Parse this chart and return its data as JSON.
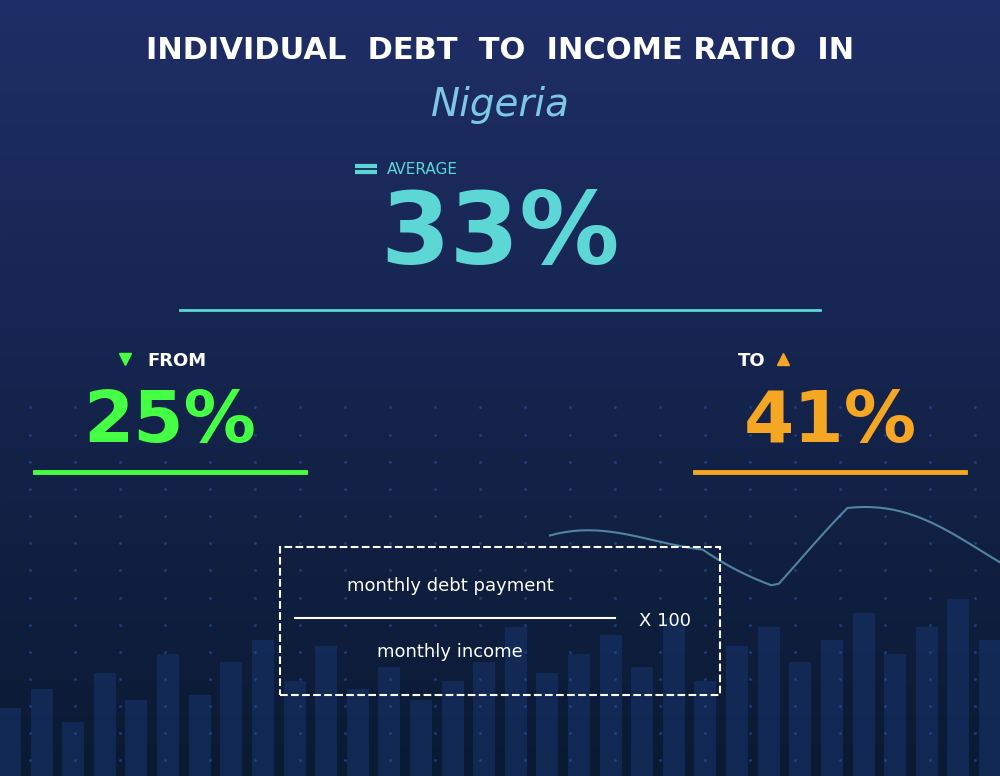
{
  "title_line1": "INDIVIDUAL  DEBT  TO  INCOME RATIO  IN",
  "title_line2": "Nigeria",
  "avg_label": "AVERAGE",
  "avg_value": "33%",
  "from_label": "FROM",
  "from_value": "25%",
  "to_label": "TO",
  "to_value": "41%",
  "formula_numerator": "monthly debt payment",
  "formula_denominator": "monthly income",
  "formula_multiplier": "X 100",
  "bg_color_top": "#0a1f4e",
  "bg_color_bottom": "#0d2a6e",
  "avg_color": "#5dd6d6",
  "from_color": "#44ff44",
  "to_color": "#f5a623",
  "title_color": "#ffffff",
  "subtitle_color": "#7ec8e3",
  "label_color": "#ffffff",
  "avg_icon_color": "#5dd6d6",
  "from_arrow_color": "#44ff44",
  "to_arrow_color": "#f5a623",
  "formula_color": "#ffffff",
  "line_color": "#5dd6d6",
  "separator_line_color": "#5dd6d6",
  "bar_color": "#1a3a7a",
  "dot_color": "#1e4080",
  "chart_line_color": "#7ec8e3"
}
